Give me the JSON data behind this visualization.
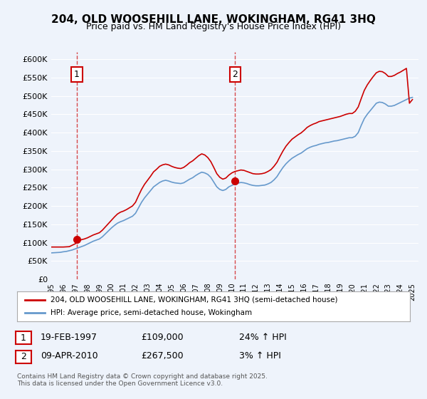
{
  "title": "204, OLD WOOSEHILL LANE, WOKINGHAM, RG41 3HQ",
  "subtitle": "Price paid vs. HM Land Registry's House Price Index (HPI)",
  "background_color": "#eef3fb",
  "plot_bg_color": "#eef3fb",
  "ylim": [
    0,
    620000
  ],
  "yticks": [
    0,
    50000,
    100000,
    150000,
    200000,
    250000,
    300000,
    350000,
    400000,
    450000,
    500000,
    550000,
    600000
  ],
  "xlim_start": 1995.0,
  "xlim_end": 2025.5,
  "sale1_year": 1997.12,
  "sale1_price": 109000,
  "sale1_label": "1",
  "sale2_year": 2010.27,
  "sale2_price": 267500,
  "sale2_label": "2",
  "red_line_color": "#cc0000",
  "blue_line_color": "#6699cc",
  "dashed_line_color": "#cc0000",
  "legend_line1": "204, OLD WOOSEHILL LANE, WOKINGHAM, RG41 3HQ (semi-detached house)",
  "legend_line2": "HPI: Average price, semi-detached house, Wokingham",
  "annotation1_date": "19-FEB-1997",
  "annotation1_price": "£109,000",
  "annotation1_hpi": "24% ↑ HPI",
  "annotation2_date": "09-APR-2010",
  "annotation2_price": "£267,500",
  "annotation2_hpi": "3% ↑ HPI",
  "footer": "Contains HM Land Registry data © Crown copyright and database right 2025.\nThis data is licensed under the Open Government Licence v3.0.",
  "hpi_data_years": [
    1995.0,
    1995.25,
    1995.5,
    1995.75,
    1996.0,
    1996.25,
    1996.5,
    1996.75,
    1997.0,
    1997.25,
    1997.5,
    1997.75,
    1998.0,
    1998.25,
    1998.5,
    1998.75,
    1999.0,
    1999.25,
    1999.5,
    1999.75,
    2000.0,
    2000.25,
    2000.5,
    2000.75,
    2001.0,
    2001.25,
    2001.5,
    2001.75,
    2002.0,
    2002.25,
    2002.5,
    2002.75,
    2003.0,
    2003.25,
    2003.5,
    2003.75,
    2004.0,
    2004.25,
    2004.5,
    2004.75,
    2005.0,
    2005.25,
    2005.5,
    2005.75,
    2006.0,
    2006.25,
    2006.5,
    2006.75,
    2007.0,
    2007.25,
    2007.5,
    2007.75,
    2008.0,
    2008.25,
    2008.5,
    2008.75,
    2009.0,
    2009.25,
    2009.5,
    2009.75,
    2010.0,
    2010.25,
    2010.5,
    2010.75,
    2011.0,
    2011.25,
    2011.5,
    2011.75,
    2012.0,
    2012.25,
    2012.5,
    2012.75,
    2013.0,
    2013.25,
    2013.5,
    2013.75,
    2014.0,
    2014.25,
    2014.5,
    2014.75,
    2015.0,
    2015.25,
    2015.5,
    2015.75,
    2016.0,
    2016.25,
    2016.5,
    2016.75,
    2017.0,
    2017.25,
    2017.5,
    2017.75,
    2018.0,
    2018.25,
    2018.5,
    2018.75,
    2019.0,
    2019.25,
    2019.5,
    2019.75,
    2020.0,
    2020.25,
    2020.5,
    2020.75,
    2021.0,
    2021.25,
    2021.5,
    2021.75,
    2022.0,
    2022.25,
    2022.5,
    2022.75,
    2023.0,
    2023.25,
    2023.5,
    2023.75,
    2024.0,
    2024.25,
    2024.5,
    2024.75,
    2025.0
  ],
  "hpi_values": [
    72000,
    72500,
    73000,
    73500,
    75000,
    76000,
    78000,
    80000,
    83000,
    86000,
    89000,
    92000,
    96000,
    100000,
    104000,
    107000,
    110000,
    116000,
    124000,
    132000,
    140000,
    147000,
    153000,
    157000,
    160000,
    164000,
    168000,
    172000,
    180000,
    195000,
    210000,
    222000,
    232000,
    242000,
    252000,
    258000,
    264000,
    268000,
    270000,
    268000,
    265000,
    263000,
    262000,
    261000,
    263000,
    268000,
    273000,
    277000,
    283000,
    288000,
    292000,
    290000,
    286000,
    278000,
    265000,
    252000,
    245000,
    242000,
    245000,
    252000,
    256000,
    260000,
    262000,
    264000,
    263000,
    261000,
    258000,
    256000,
    255000,
    255000,
    256000,
    257000,
    260000,
    264000,
    271000,
    280000,
    293000,
    305000,
    315000,
    323000,
    330000,
    335000,
    340000,
    344000,
    350000,
    356000,
    360000,
    363000,
    365000,
    368000,
    370000,
    372000,
    373000,
    375000,
    377000,
    378000,
    380000,
    382000,
    384000,
    386000,
    386000,
    390000,
    400000,
    420000,
    438000,
    450000,
    460000,
    470000,
    480000,
    483000,
    482000,
    478000,
    472000,
    472000,
    474000,
    478000,
    482000,
    486000,
    490000,
    494000,
    496000
  ],
  "price_line_years": [
    1995.0,
    1995.25,
    1995.5,
    1995.75,
    1996.0,
    1996.25,
    1996.5,
    1996.75,
    1997.0,
    1997.25,
    1997.5,
    1997.75,
    1998.0,
    1998.25,
    1998.5,
    1998.75,
    1999.0,
    1999.25,
    1999.5,
    1999.75,
    2000.0,
    2000.25,
    2000.5,
    2000.75,
    2001.0,
    2001.25,
    2001.5,
    2001.75,
    2002.0,
    2002.25,
    2002.5,
    2002.75,
    2003.0,
    2003.25,
    2003.5,
    2003.75,
    2004.0,
    2004.25,
    2004.5,
    2004.75,
    2005.0,
    2005.25,
    2005.5,
    2005.75,
    2006.0,
    2006.25,
    2006.5,
    2006.75,
    2007.0,
    2007.25,
    2007.5,
    2007.75,
    2008.0,
    2008.25,
    2008.5,
    2008.75,
    2009.0,
    2009.25,
    2009.5,
    2009.75,
    2010.0,
    2010.25,
    2010.5,
    2010.75,
    2011.0,
    2011.25,
    2011.5,
    2011.75,
    2012.0,
    2012.25,
    2012.5,
    2012.75,
    2013.0,
    2013.25,
    2013.5,
    2013.75,
    2014.0,
    2014.25,
    2014.5,
    2014.75,
    2015.0,
    2015.25,
    2015.5,
    2015.75,
    2016.0,
    2016.25,
    2016.5,
    2016.75,
    2017.0,
    2017.25,
    2017.5,
    2017.75,
    2018.0,
    2018.25,
    2018.5,
    2018.75,
    2019.0,
    2019.25,
    2019.5,
    2019.75,
    2020.0,
    2020.25,
    2020.5,
    2020.75,
    2021.0,
    2021.25,
    2021.5,
    2021.75,
    2022.0,
    2022.25,
    2022.5,
    2022.75,
    2023.0,
    2023.25,
    2023.5,
    2023.75,
    2024.0,
    2024.25,
    2024.5,
    2024.75,
    2025.0
  ],
  "price_line_values": [
    88000,
    88000,
    88000,
    88000,
    88000,
    88500,
    89000,
    93000,
    97000,
    103000,
    108000,
    110000,
    113000,
    117000,
    121000,
    124000,
    127000,
    134000,
    143000,
    152000,
    161000,
    170000,
    178000,
    183000,
    186000,
    190000,
    195000,
    200000,
    210000,
    228000,
    245000,
    259000,
    270000,
    281000,
    293000,
    300000,
    308000,
    312000,
    314000,
    312000,
    308000,
    305000,
    303000,
    302000,
    305000,
    311000,
    318000,
    323000,
    330000,
    337000,
    342000,
    339000,
    332000,
    321000,
    305000,
    288000,
    278000,
    273000,
    276000,
    284000,
    290000,
    294000,
    296000,
    298000,
    297000,
    294000,
    291000,
    288000,
    287000,
    287000,
    288000,
    290000,
    294000,
    299000,
    308000,
    319000,
    335000,
    350000,
    363000,
    373000,
    382000,
    388000,
    394000,
    399000,
    406000,
    414000,
    419000,
    423000,
    426000,
    430000,
    432000,
    434000,
    436000,
    438000,
    440000,
    442000,
    444000,
    447000,
    450000,
    452000,
    452000,
    458000,
    470000,
    493000,
    515000,
    530000,
    542000,
    553000,
    563000,
    567000,
    566000,
    561000,
    553000,
    553000,
    556000,
    561000,
    565000,
    570000,
    575000,
    480000,
    490000
  ]
}
